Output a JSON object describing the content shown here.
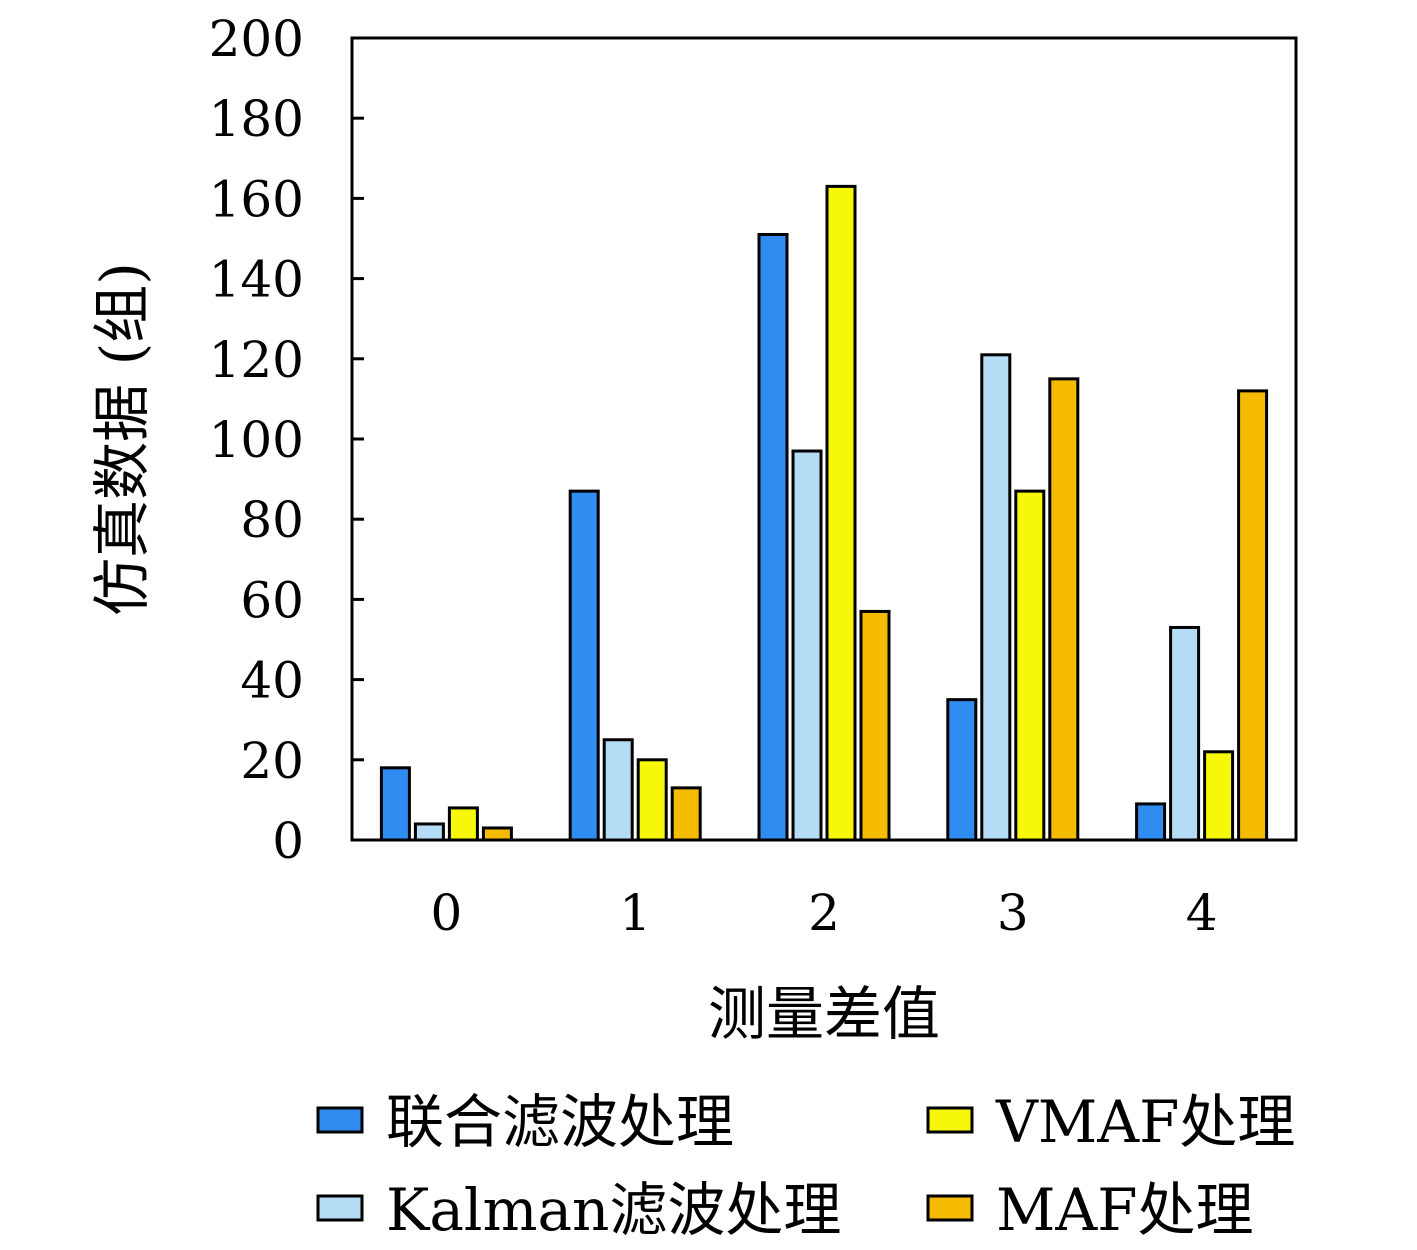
{
  "chart_data": {
    "type": "bar",
    "title": "",
    "xlabel": "测量差值",
    "ylabel": "仿真数据 (组)",
    "categories": [
      "0",
      "1",
      "2",
      "3",
      "4"
    ],
    "ylim": [
      0,
      200
    ],
    "yticks": [
      0,
      20,
      40,
      60,
      80,
      100,
      120,
      140,
      160,
      180,
      200
    ],
    "grid": false,
    "legend_position": "bottom",
    "series": [
      {
        "name": "联合滤波处理",
        "color": "#2f8cf0",
        "values": [
          18,
          87,
          151,
          35,
          9
        ]
      },
      {
        "name": "Kalman滤波处理",
        "color": "#b5dcf5",
        "values": [
          4,
          25,
          97,
          121,
          53
        ]
      },
      {
        "name": "VMAF处理",
        "color": "#f7f70a",
        "values": [
          8,
          20,
          163,
          87,
          22
        ]
      },
      {
        "name": "MAF处理",
        "color": "#f5bb00",
        "values": [
          3,
          13,
          57,
          115,
          112
        ]
      }
    ]
  }
}
